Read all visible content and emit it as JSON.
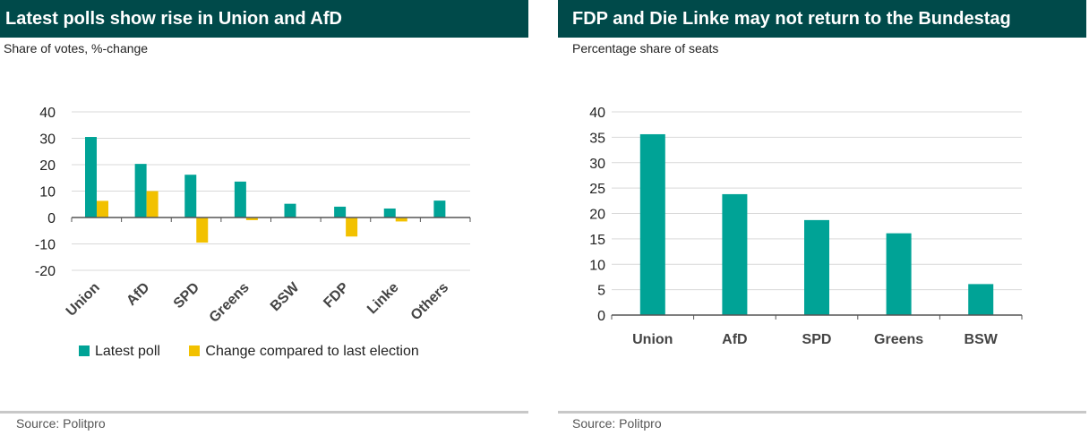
{
  "colors": {
    "header": "#004a4a",
    "teal": "#00a396",
    "gold": "#f2c100",
    "grid": "#d9d9d9",
    "axis": "#555555"
  },
  "left": {
    "title": "Latest polls show rise in Union and AfD",
    "subtitle": "Share of votes, %-change",
    "source": "Source: Politpro",
    "legend": [
      "Latest poll",
      "Change compared to last election"
    ]
  },
  "right": {
    "title": "FDP and Die Linke may not return to the Bundestag",
    "subtitle": "Percentage share of seats",
    "source": "Source: Politpro"
  },
  "chart_data": [
    {
      "type": "bar",
      "title": "Latest polls show rise in Union and AfD",
      "subtitle": "Share of votes, %-change",
      "categories": [
        "Union",
        "AfD",
        "SPD",
        "Greens",
        "BSW",
        "FDP",
        "Linke",
        "Others"
      ],
      "series": [
        {
          "name": "Latest poll",
          "color": "#00a396",
          "values": [
            30.5,
            20.3,
            16.2,
            13.6,
            5.2,
            4.1,
            3.4,
            6.4
          ]
        },
        {
          "name": "Change compared to last election",
          "color": "#f2c100",
          "values": [
            6.3,
            10,
            -9.5,
            -1,
            0,
            -7.2,
            -1.5,
            0
          ]
        }
      ],
      "ylim": [
        -20,
        40
      ],
      "yticks": [
        40,
        30,
        20,
        10,
        0,
        -10,
        -20
      ],
      "grid": true,
      "legend": "bottom"
    },
    {
      "type": "bar",
      "title": "FDP and Die Linke may not return to the Bundestag",
      "subtitle": "Percentage share of seats",
      "categories": [
        "Union",
        "AfD",
        "SPD",
        "Greens",
        "BSW"
      ],
      "values": [
        35.6,
        23.8,
        18.7,
        16.1,
        6.1
      ],
      "ylim": [
        0,
        40
      ],
      "yticks": [
        40,
        35,
        30,
        25,
        20,
        15,
        10,
        5,
        0
      ],
      "grid": true
    }
  ]
}
